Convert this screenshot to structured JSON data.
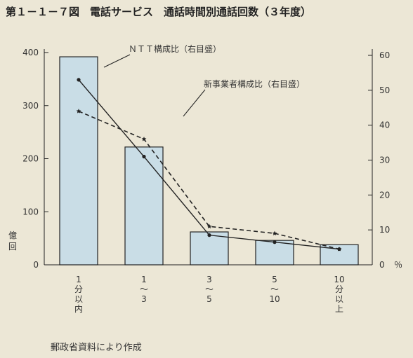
{
  "chart_data": {
    "type": "bar",
    "title": "第１－１－７図　電話サービス　通話時間別通話回数（３年度）",
    "categories": [
      [
        "1",
        "分",
        "以",
        "内"
      ],
      [
        "1",
        "〜",
        "3"
      ],
      [
        "3",
        "〜",
        "5"
      ],
      [
        "5",
        "〜",
        "10"
      ],
      [
        "10",
        "分",
        "以",
        "上"
      ]
    ],
    "bar_series": {
      "values": [
        392,
        222,
        62,
        46,
        38
      ]
    },
    "line_series": [
      {
        "name": "ＮＴＴ構成比（右目盛）",
        "values": [
          53,
          31,
          8.5,
          6.5,
          4.5
        ],
        "style": "solid",
        "marker": "dot"
      },
      {
        "name": "新事業者構成比（右目盛）",
        "values": [
          44,
          36,
          11,
          9,
          4.5
        ],
        "style": "dashed",
        "marker": "star"
      }
    ],
    "left_axis": {
      "label": "億回",
      "ylim": [
        0,
        400
      ],
      "ticks": [
        "0",
        "100",
        "200",
        "300",
        "400"
      ]
    },
    "right_axis": {
      "unit": "％",
      "ylim": [
        0,
        60
      ],
      "ticks": [
        "0",
        "10",
        "20",
        "30",
        "40",
        "50",
        "60"
      ]
    },
    "source": "郵政省資料により作成"
  },
  "colors": {
    "bar_fill": "#c9dde6",
    "bar_stroke": "#222222",
    "line": "#222222",
    "background": "#ece7d6"
  }
}
